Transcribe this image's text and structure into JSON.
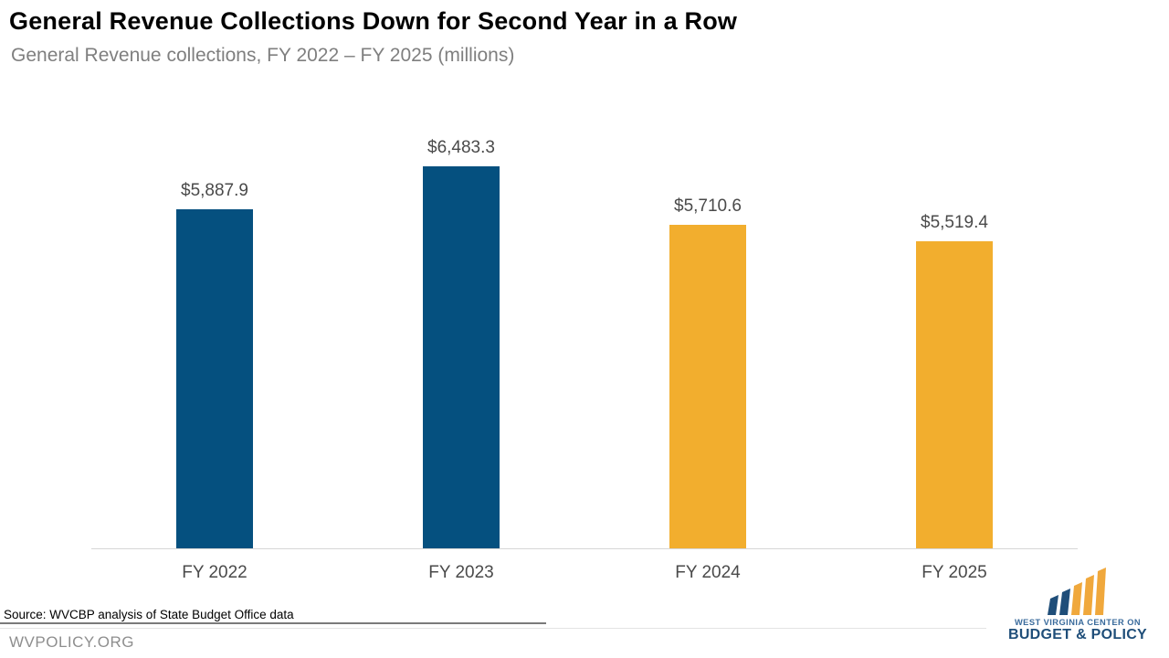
{
  "chart_data": {
    "type": "bar",
    "title": "General Revenue Collections Down for Second Year in a Row",
    "subtitle": "General Revenue collections, FY 2022 – FY 2025 (millions)",
    "categories": [
      "FY 2022",
      "FY 2023",
      "FY 2024",
      "FY 2025"
    ],
    "values": [
      5887.9,
      6483.3,
      5710.6,
      5519.4
    ],
    "value_labels": [
      "$5,887.9",
      "$6,483.3",
      "$5,710.6",
      "$5,519.4"
    ],
    "bar_colors": [
      "#05507F",
      "#05507F",
      "#F2AE2E",
      "#F2AE2E"
    ],
    "xlabel": "",
    "ylabel": "",
    "ylim": [
      2000,
      6700
    ],
    "grid": false,
    "legend": "none",
    "axis_line_color": "#D6D6D6",
    "value_label_color": "#4A4A4A",
    "category_label_color": "#4A4A4A"
  },
  "footer": {
    "source": "Source: WVCBP analysis of State Budget Office data",
    "site": "WVPOLICY.ORG"
  },
  "logo": {
    "icon": "ascending-bars-icon",
    "line1": "WEST VIRGINIA CENTER ON",
    "line2": "BUDGET & POLICY",
    "blue": "#1F4E79",
    "gold": "#F0A83C"
  }
}
